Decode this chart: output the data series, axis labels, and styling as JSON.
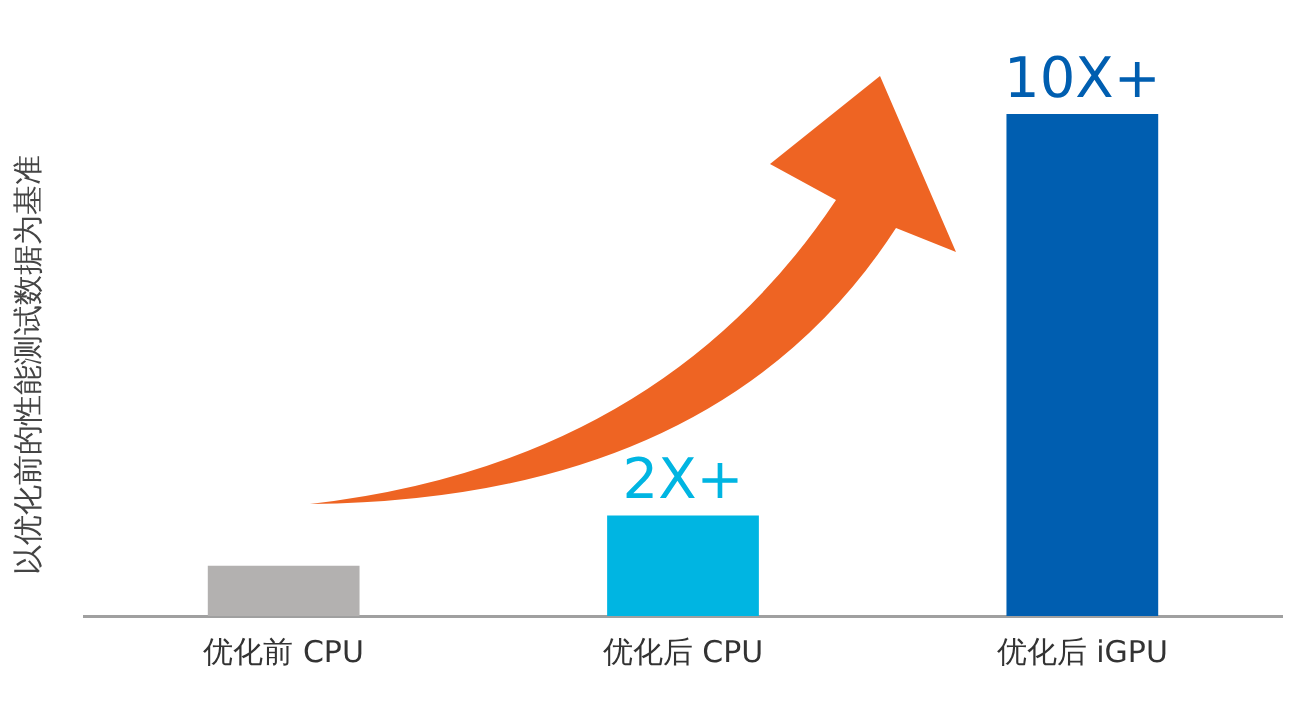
{
  "chart_data": {
    "type": "bar",
    "ylabel": "以优化前的性能测试数据为基准",
    "categories": [
      "优化前 CPU",
      "优化后 CPU",
      "优化后 iGPU"
    ],
    "values": [
      1,
      2,
      10
    ],
    "colors": [
      "#b3b1b0",
      "#00b5e2",
      "#005eb0"
    ],
    "value_labels": [
      null,
      "2X+",
      "10X+"
    ],
    "ylim": [
      0,
      10
    ],
    "tick_labels": "x",
    "grid": false,
    "legend": false
  }
}
